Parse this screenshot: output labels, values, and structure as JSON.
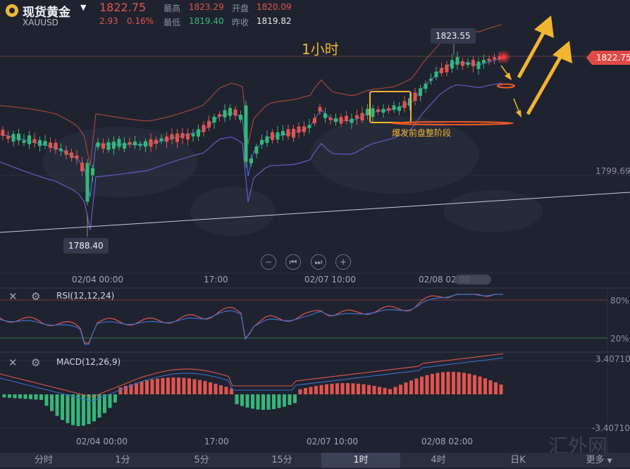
{
  "header": {
    "symbol_name": "现货黄金",
    "symbol_code": "XAUUSD",
    "last_price": "1822.75",
    "change": "2.93",
    "change_pct": "0.16%",
    "high_label": "最高",
    "high_value": "1823.29",
    "open_label": "开盘",
    "open_value": "1820.09",
    "low_label": "最低",
    "low_value": "1819.40",
    "prev_close_label": "昨收",
    "prev_close_value": "1819.82"
  },
  "chart": {
    "timeframe_title": "1小时",
    "current_price_tag": "1822.75",
    "level_label": "1799.69",
    "high_callout": "1823.55",
    "low_callout": "1788.40",
    "annotation": "爆发前盘整阶段",
    "time_labels": [
      "02/04 00:00",
      "17:00",
      "02/07 10:00",
      "02/08 02:00"
    ],
    "colors": {
      "up": "#e2544e",
      "down": "#35b77a",
      "annotation": "#f2b52f"
    }
  },
  "controls": [
    "zoom-out",
    "jump-start",
    "jump-end",
    "zoom-in"
  ],
  "rsi": {
    "label": "RSI(12,12,24)",
    "upper": "80%",
    "lower": "20%"
  },
  "macd": {
    "label": "MACD(12,26,9)",
    "max": "3.40710",
    "min": "-3.40710"
  },
  "time_labels_bottom": [
    "02/04 00:00",
    "17:00",
    "02/07 10:00",
    "02/08 02:00"
  ],
  "tabs": [
    {
      "label": "分时"
    },
    {
      "label": "1分"
    },
    {
      "label": "5分"
    },
    {
      "label": "15分"
    },
    {
      "label": "1时",
      "active": true
    },
    {
      "label": "4时"
    },
    {
      "label": "日K"
    },
    {
      "label": "更多"
    }
  ],
  "watermark": "汇外网"
}
